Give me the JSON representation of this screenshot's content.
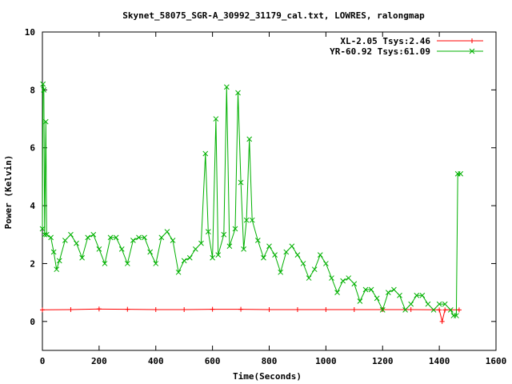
{
  "chart_data": {
    "type": "line",
    "title": "Skynet_58075_SGR-A_30992_31179_cal.txt, LOWRES, ralongmap",
    "xlabel": "Time(Seconds)",
    "ylabel": "Power (Kelvin)",
    "xlim": [
      0,
      1600
    ],
    "ylim": [
      -1,
      10
    ],
    "x_ticks": [
      0,
      200,
      400,
      600,
      800,
      1000,
      1200,
      1400,
      1600
    ],
    "y_ticks": [
      0,
      2,
      4,
      6,
      8,
      10
    ],
    "grid": false,
    "legend_position": "top-right",
    "series": [
      {
        "name": "XL-2.05 Tsys:2.46",
        "color": "#ff0000",
        "marker": "plus",
        "points": [
          [
            0,
            0.4
          ],
          [
            100,
            0.41
          ],
          [
            200,
            0.43
          ],
          [
            300,
            0.42
          ],
          [
            400,
            0.41
          ],
          [
            500,
            0.41
          ],
          [
            600,
            0.42
          ],
          [
            700,
            0.42
          ],
          [
            800,
            0.41
          ],
          [
            900,
            0.41
          ],
          [
            1000,
            0.41
          ],
          [
            1100,
            0.41
          ],
          [
            1200,
            0.41
          ],
          [
            1300,
            0.41
          ],
          [
            1400,
            0.4
          ],
          [
            1410,
            0.0
          ],
          [
            1420,
            0.4
          ],
          [
            1470,
            0.4
          ]
        ]
      },
      {
        "name": "YR-60.92 Tsys:61.09",
        "color": "#00b000",
        "marker": "x",
        "points": [
          [
            0,
            3.2
          ],
          [
            2,
            8.2
          ],
          [
            5,
            8.0
          ],
          [
            8,
            3.0
          ],
          [
            12,
            6.9
          ],
          [
            15,
            3.0
          ],
          [
            30,
            2.9
          ],
          [
            40,
            2.4
          ],
          [
            50,
            1.8
          ],
          [
            60,
            2.1
          ],
          [
            80,
            2.8
          ],
          [
            100,
            3.0
          ],
          [
            120,
            2.7
          ],
          [
            140,
            2.2
          ],
          [
            160,
            2.9
          ],
          [
            180,
            3.0
          ],
          [
            200,
            2.5
          ],
          [
            220,
            2.0
          ],
          [
            240,
            2.9
          ],
          [
            260,
            2.9
          ],
          [
            280,
            2.5
          ],
          [
            300,
            2.0
          ],
          [
            320,
            2.8
          ],
          [
            340,
            2.9
          ],
          [
            360,
            2.9
          ],
          [
            380,
            2.4
          ],
          [
            400,
            2.0
          ],
          [
            420,
            2.9
          ],
          [
            440,
            3.1
          ],
          [
            460,
            2.8
          ],
          [
            480,
            1.7
          ],
          [
            500,
            2.1
          ],
          [
            520,
            2.2
          ],
          [
            540,
            2.5
          ],
          [
            560,
            2.7
          ],
          [
            575,
            5.8
          ],
          [
            585,
            3.1
          ],
          [
            600,
            2.2
          ],
          [
            612,
            7.0
          ],
          [
            620,
            2.3
          ],
          [
            640,
            3.0
          ],
          [
            650,
            8.1
          ],
          [
            660,
            2.6
          ],
          [
            680,
            3.2
          ],
          [
            690,
            7.9
          ],
          [
            700,
            4.8
          ],
          [
            710,
            2.5
          ],
          [
            720,
            3.5
          ],
          [
            730,
            6.3
          ],
          [
            740,
            3.5
          ],
          [
            760,
            2.8
          ],
          [
            780,
            2.2
          ],
          [
            800,
            2.6
          ],
          [
            820,
            2.3
          ],
          [
            840,
            1.7
          ],
          [
            860,
            2.4
          ],
          [
            880,
            2.6
          ],
          [
            900,
            2.3
          ],
          [
            920,
            2.0
          ],
          [
            940,
            1.5
          ],
          [
            960,
            1.8
          ],
          [
            980,
            2.3
          ],
          [
            1000,
            2.0
          ],
          [
            1020,
            1.5
          ],
          [
            1040,
            1.0
          ],
          [
            1060,
            1.4
          ],
          [
            1080,
            1.5
          ],
          [
            1100,
            1.3
          ],
          [
            1120,
            0.7
          ],
          [
            1140,
            1.1
          ],
          [
            1160,
            1.1
          ],
          [
            1180,
            0.8
          ],
          [
            1200,
            0.4
          ],
          [
            1220,
            1.0
          ],
          [
            1240,
            1.1
          ],
          [
            1260,
            0.9
          ],
          [
            1280,
            0.4
          ],
          [
            1300,
            0.6
          ],
          [
            1320,
            0.9
          ],
          [
            1340,
            0.9
          ],
          [
            1360,
            0.6
          ],
          [
            1380,
            0.4
          ],
          [
            1400,
            0.6
          ],
          [
            1420,
            0.6
          ],
          [
            1440,
            0.4
          ],
          [
            1450,
            0.2
          ],
          [
            1460,
            0.2
          ],
          [
            1465,
            5.1
          ],
          [
            1475,
            5.1
          ]
        ]
      }
    ]
  }
}
